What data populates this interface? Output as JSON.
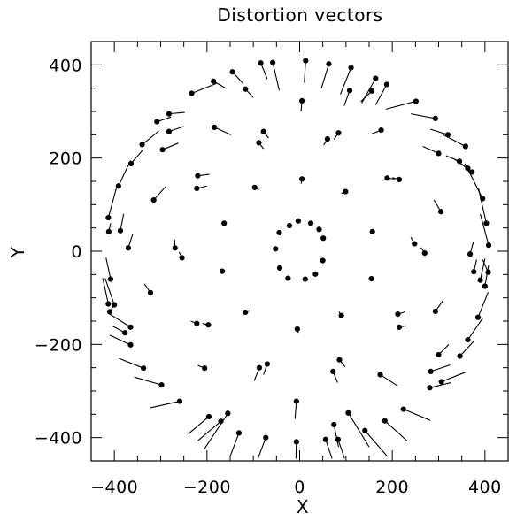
{
  "chart_data": {
    "type": "scatter",
    "title": "Distortion vectors",
    "xlabel": "X",
    "ylabel": "Y",
    "xlim": [
      -450,
      450
    ],
    "ylim": [
      -450,
      450
    ],
    "x_ticks": [
      -400,
      -200,
      0,
      200,
      400
    ],
    "y_ticks": [
      -400,
      -200,
      0,
      200,
      400
    ],
    "x_tick_labels": [
      "−400",
      "−200",
      "0",
      "200",
      "400"
    ],
    "y_tick_labels": [
      "−400",
      "−200",
      "0",
      "200",
      "400"
    ],
    "minor_tick_step": 50,
    "grid": false,
    "vectors_note": "each point is a star position (dot); each segment is its distortion vector (tail end in data units)",
    "vectors": [
      {
        "x": 13,
        "y": 409,
        "tx": 10,
        "ty": 362
      },
      {
        "x": 63,
        "y": 402,
        "tx": 47,
        "ty": 350
      },
      {
        "x": 111,
        "y": 394,
        "tx": 88,
        "ty": 337
      },
      {
        "x": 164,
        "y": 371,
        "tx": 134,
        "ty": 318
      },
      {
        "x": 188,
        "y": 358,
        "tx": 164,
        "ty": 314
      },
      {
        "x": 156,
        "y": 344,
        "tx": 132,
        "ty": 321
      },
      {
        "x": 108,
        "y": 345,
        "tx": 96,
        "ty": 312
      },
      {
        "x": 251,
        "y": 322,
        "tx": 186,
        "ty": 305
      },
      {
        "x": 293,
        "y": 285,
        "tx": 240,
        "ty": 295
      },
      {
        "x": 320,
        "y": 250,
        "tx": 282,
        "ty": 262
      },
      {
        "x": 358,
        "y": 225,
        "tx": 310,
        "ty": 250
      },
      {
        "x": 300,
        "y": 210,
        "tx": 266,
        "ty": 225
      },
      {
        "x": 345,
        "y": 193,
        "tx": 316,
        "ty": 205
      },
      {
        "x": 363,
        "y": 178,
        "tx": 332,
        "ty": 199
      },
      {
        "x": 372,
        "y": 170,
        "tx": 340,
        "ty": 194
      },
      {
        "x": 395,
        "y": 113,
        "tx": 357,
        "ty": 188
      },
      {
        "x": 403,
        "y": 60,
        "tx": 386,
        "ty": 135
      },
      {
        "x": 408,
        "y": 13,
        "tx": 390,
        "ty": 80
      },
      {
        "x": 407,
        "y": -45,
        "tx": 395,
        "ty": -18
      },
      {
        "x": 400,
        "y": -75,
        "tx": 408,
        "ty": -30
      },
      {
        "x": 390,
        "y": -62,
        "tx": 400,
        "ty": -16
      },
      {
        "x": 385,
        "y": -142,
        "tx": 407,
        "ty": -88
      },
      {
        "x": 363,
        "y": -190,
        "tx": 395,
        "ty": -144
      },
      {
        "x": 346,
        "y": -225,
        "tx": 377,
        "ty": -192
      },
      {
        "x": 306,
        "y": -280,
        "tx": 357,
        "ty": -260
      },
      {
        "x": 300,
        "y": -222,
        "tx": 322,
        "ty": -200
      },
      {
        "x": 283,
        "y": -258,
        "tx": 325,
        "ty": -244
      },
      {
        "x": 281,
        "y": -293,
        "tx": 326,
        "ty": -282
      },
      {
        "x": 224,
        "y": -339,
        "tx": 282,
        "ty": -363
      },
      {
        "x": 184,
        "y": -364,
        "tx": 232,
        "ty": -407
      },
      {
        "x": 141,
        "y": -385,
        "tx": 189,
        "ty": -440
      },
      {
        "x": 105,
        "y": -347,
        "tx": 150,
        "ty": -420
      },
      {
        "x": 83,
        "y": -404,
        "tx": 97,
        "ty": -445
      },
      {
        "x": 74,
        "y": -372,
        "tx": 84,
        "ty": -420
      },
      {
        "x": 56,
        "y": -404,
        "tx": 70,
        "ty": -445
      },
      {
        "x": -7,
        "y": -409,
        "tx": -8,
        "ty": -445
      },
      {
        "x": -73,
        "y": -400,
        "tx": -90,
        "ty": -445
      },
      {
        "x": -131,
        "y": -390,
        "tx": -150,
        "ty": -440
      },
      {
        "x": -155,
        "y": -348,
        "tx": -206,
        "ty": -425
      },
      {
        "x": -170,
        "y": -365,
        "tx": -220,
        "ty": -407
      },
      {
        "x": -196,
        "y": -355,
        "tx": -240,
        "ty": -392
      },
      {
        "x": -259,
        "y": -322,
        "tx": -322,
        "ty": -336
      },
      {
        "x": -298,
        "y": -287,
        "tx": -357,
        "ty": -270
      },
      {
        "x": -337,
        "y": -251,
        "tx": -390,
        "ty": -230
      },
      {
        "x": -365,
        "y": -201,
        "tx": -410,
        "ty": -180
      },
      {
        "x": -365,
        "y": -163,
        "tx": -410,
        "ty": -135
      },
      {
        "x": -377,
        "y": -175,
        "tx": -405,
        "ty": -160
      },
      {
        "x": -413,
        "y": -113,
        "tx": -425,
        "ty": -58
      },
      {
        "x": -408,
        "y": -60,
        "tx": -418,
        "ty": -14
      },
      {
        "x": -413,
        "y": 72,
        "tx": -395,
        "ty": 138
      },
      {
        "x": -391,
        "y": 140,
        "tx": -365,
        "ty": 195
      },
      {
        "x": -364,
        "y": 188,
        "tx": -338,
        "ty": 218
      },
      {
        "x": -340,
        "y": 229,
        "tx": -304,
        "ty": 258
      },
      {
        "x": -308,
        "y": 278,
        "tx": -278,
        "ty": 288
      },
      {
        "x": -282,
        "y": 295,
        "tx": -248,
        "ty": 298
      },
      {
        "x": -282,
        "y": 257,
        "tx": -250,
        "ty": 268
      },
      {
        "x": -296,
        "y": 218,
        "tx": -262,
        "ty": 232
      },
      {
        "x": -233,
        "y": 339,
        "tx": -180,
        "ty": 360
      },
      {
        "x": -186,
        "y": 365,
        "tx": -160,
        "ty": 350
      },
      {
        "x": -145,
        "y": 385,
        "tx": -122,
        "ty": 360
      },
      {
        "x": -84,
        "y": 404,
        "tx": -70,
        "ty": 370
      },
      {
        "x": -58,
        "y": 405,
        "tx": -44,
        "ty": 345
      },
      {
        "x": -117,
        "y": 348,
        "tx": -100,
        "ty": 330
      },
      {
        "x": -184,
        "y": 266,
        "tx": -148,
        "ty": 250
      },
      {
        "x": -78,
        "y": 257,
        "tx": -67,
        "ty": 243
      },
      {
        "x": -88,
        "y": 233,
        "tx": -78,
        "ty": 220
      },
      {
        "x": 84,
        "y": 254,
        "tx": 74,
        "ty": 240
      },
      {
        "x": 60,
        "y": 241,
        "tx": 52,
        "ty": 228
      },
      {
        "x": 176,
        "y": 260,
        "tx": 156,
        "ty": 252
      },
      {
        "x": 5,
        "y": 323,
        "tx": 3,
        "ty": 300
      },
      {
        "x": -315,
        "y": 110,
        "tx": -290,
        "ty": 138
      },
      {
        "x": -220,
        "y": 162,
        "tx": -195,
        "ty": 165
      },
      {
        "x": -222,
        "y": 135,
        "tx": -200,
        "ty": 140
      },
      {
        "x": -97,
        "y": 137,
        "tx": -88,
        "ty": 132
      },
      {
        "x": 5,
        "y": 155,
        "tx": 3,
        "ty": 145
      },
      {
        "x": 99,
        "y": 128,
        "tx": 90,
        "ty": 124
      },
      {
        "x": 189,
        "y": 157,
        "tx": 205,
        "ty": 155
      },
      {
        "x": 215,
        "y": 154,
        "tx": 200,
        "ty": 158
      },
      {
        "x": 305,
        "y": 85,
        "tx": 290,
        "ty": 110
      },
      {
        "x": -163,
        "y": 60,
        "tx": -160,
        "ty": 58
      },
      {
        "x": 157,
        "y": 42,
        "tx": 155,
        "ty": 46
      },
      {
        "x": -387,
        "y": 44,
        "tx": -380,
        "ty": 80
      },
      {
        "x": -370,
        "y": 7,
        "tx": -360,
        "ty": 38
      },
      {
        "x": -412,
        "y": 42,
        "tx": -408,
        "ty": 60
      },
      {
        "x": -269,
        "y": 7,
        "tx": -270,
        "ty": 25
      },
      {
        "x": -254,
        "y": -14,
        "tx": -260,
        "ty": -2
      },
      {
        "x": -167,
        "y": -43,
        "tx": -165,
        "ty": -40
      },
      {
        "x": 248,
        "y": 16,
        "tx": 240,
        "ty": 30
      },
      {
        "x": 270,
        "y": -4,
        "tx": 262,
        "ty": 8
      },
      {
        "x": 368,
        "y": -6,
        "tx": 375,
        "ty": 20
      },
      {
        "x": 376,
        "y": -44,
        "tx": 382,
        "ty": -18
      },
      {
        "x": 155,
        "y": -59,
        "tx": 152,
        "ty": -55
      },
      {
        "x": -322,
        "y": -89,
        "tx": -335,
        "ty": -70
      },
      {
        "x": -400,
        "y": -115,
        "tx": -420,
        "ty": -58
      },
      {
        "x": -410,
        "y": -130,
        "tx": -400,
        "ty": -115
      },
      {
        "x": -117,
        "y": -131,
        "tx": -108,
        "ty": -127
      },
      {
        "x": -222,
        "y": -155,
        "tx": -235,
        "ty": -150
      },
      {
        "x": -197,
        "y": -158,
        "tx": -210,
        "ty": -155
      },
      {
        "x": -5,
        "y": -167,
        "tx": -3,
        "ty": -175
      },
      {
        "x": 90,
        "y": -138,
        "tx": 85,
        "ty": -130
      },
      {
        "x": 212,
        "y": -135,
        "tx": 228,
        "ty": -130
      },
      {
        "x": 215,
        "y": -163,
        "tx": 230,
        "ty": -160
      },
      {
        "x": 293,
        "y": -129,
        "tx": 310,
        "ty": -105
      },
      {
        "x": -205,
        "y": -251,
        "tx": -220,
        "ty": -245
      },
      {
        "x": -87,
        "y": -250,
        "tx": -98,
        "ty": -278
      },
      {
        "x": -70,
        "y": -242,
        "tx": -78,
        "ty": -265
      },
      {
        "x": 86,
        "y": -233,
        "tx": 98,
        "ty": -248
      },
      {
        "x": 72,
        "y": -258,
        "tx": 82,
        "ty": -282
      },
      {
        "x": 174,
        "y": -265,
        "tx": 210,
        "ty": -288
      },
      {
        "x": -7,
        "y": -322,
        "tx": -10,
        "ty": -360
      },
      {
        "x": -3,
        "y": 65,
        "tx": -2,
        "ty": 62
      },
      {
        "x": 24,
        "y": 60,
        "tx": 23,
        "ty": 57
      },
      {
        "x": 42,
        "y": 47,
        "tx": 40,
        "ty": 45
      },
      {
        "x": 51,
        "y": 28,
        "tx": 48,
        "ty": 27
      },
      {
        "x": 50,
        "y": -20,
        "tx": 48,
        "ty": -19
      },
      {
        "x": 34,
        "y": -49,
        "tx": 33,
        "ty": -47
      },
      {
        "x": 12,
        "y": -60,
        "tx": 12,
        "ty": -58
      },
      {
        "x": -25,
        "y": -58,
        "tx": -24,
        "ty": -56
      },
      {
        "x": -43,
        "y": -36,
        "tx": -41,
        "ty": -35
      },
      {
        "x": -52,
        "y": 5,
        "tx": -50,
        "ty": 5
      },
      {
        "x": -44,
        "y": 40,
        "tx": -42,
        "ty": 39
      },
      {
        "x": -22,
        "y": 55,
        "tx": -21,
        "ty": 53
      }
    ]
  }
}
